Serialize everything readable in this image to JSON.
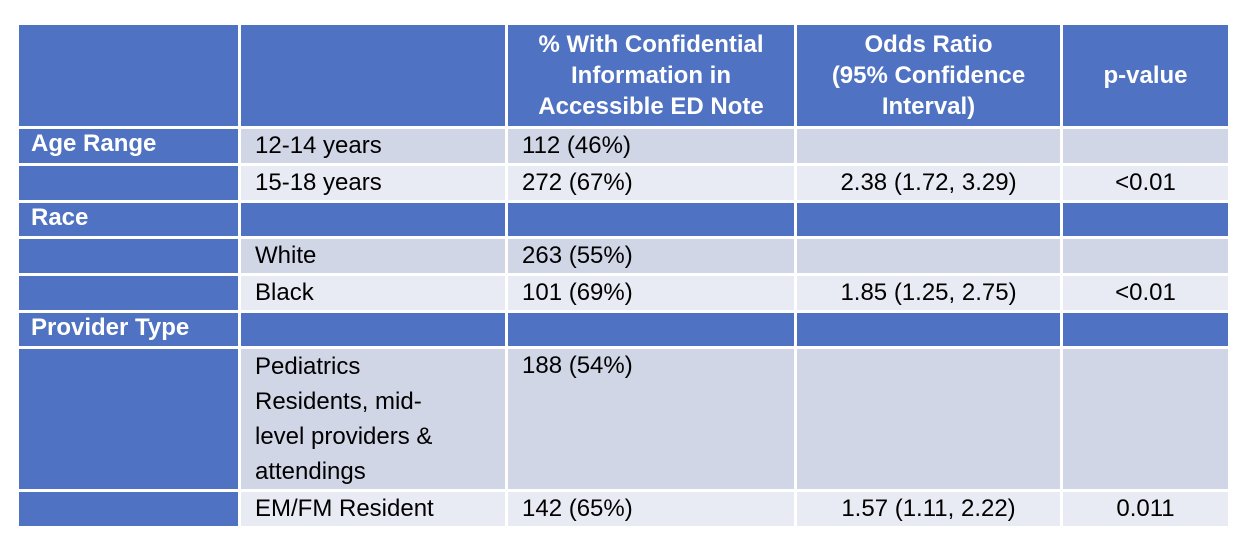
{
  "table": {
    "header": {
      "col1": "",
      "col2": "",
      "col3_lines": [
        "% With Confidential",
        "Information in",
        "Accessible ED Note"
      ],
      "col4_lines": [
        "Odds Ratio",
        "(95% Confidence",
        "Interval)"
      ],
      "col5": "p-value"
    },
    "groups": {
      "age": "Age Range",
      "race": "Race",
      "provider": "Provider Type"
    },
    "rows": {
      "age1": {
        "label": "12-14 years",
        "pct": "112 (46%)",
        "or": "",
        "p": ""
      },
      "age2": {
        "label": "15-18 years",
        "pct": "272 (67%)",
        "or": "2.38 (1.72, 3.29)",
        "p": "<0.01"
      },
      "race1": {
        "label": "White",
        "pct": "263 (55%)",
        "or": "",
        "p": ""
      },
      "race2": {
        "label": "Black",
        "pct": "101 (69%)",
        "or": "1.85 (1.25, 2.75)",
        "p": "<0.01"
      },
      "prov1": {
        "label_lines": [
          "Pediatrics",
          "Residents, mid-",
          "level providers &",
          "attendings"
        ],
        "pct": "188 (54%)",
        "or": "",
        "p": ""
      },
      "prov2": {
        "label": "EM/FM Resident",
        "pct": "142 (65%)",
        "or": "1.57 (1.11, 2.22)",
        "p": "0.011"
      }
    }
  }
}
